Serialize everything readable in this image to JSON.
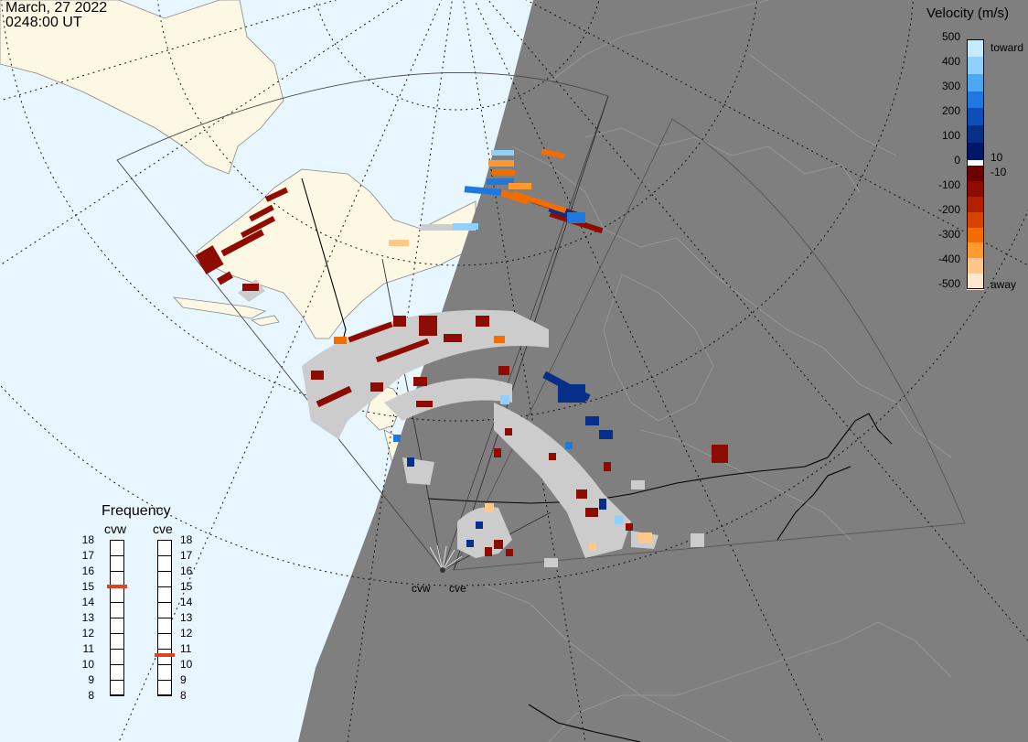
{
  "header": {
    "date": "March, 27 2022",
    "time": "0248:00 UT"
  },
  "velocity_scale": {
    "title": "Velocity (m/s)",
    "ticks": [
      "500",
      "400",
      "300",
      "200",
      "100",
      "10",
      "0",
      "-10",
      "-100",
      "-200",
      "-300",
      "-400",
      "-500"
    ],
    "toward_label": "toward",
    "away_label": "away",
    "colors_toward": [
      "#c6ebff",
      "#8fd0ff",
      "#4aa9f2",
      "#1e78e0",
      "#0d4fb8",
      "#062f8a",
      "#00166a"
    ],
    "colors_away": [
      "#6b0000",
      "#8e0b00",
      "#b32000",
      "#d84300",
      "#f26d00",
      "#ff9a30",
      "#ffc78a",
      "#ffe6cf"
    ]
  },
  "frequency_panel": {
    "title": "Frequency",
    "radars": [
      {
        "name": "cvw",
        "value_mhz": 15
      },
      {
        "name": "cve",
        "value_mhz": 10.6
      }
    ],
    "scale_ticks": [
      "18",
      "17",
      "16",
      "15",
      "14",
      "13",
      "12",
      "11",
      "10",
      "9",
      "8"
    ]
  },
  "sites": [
    {
      "code": "cvw"
    },
    {
      "code": "cve"
    }
  ],
  "colors": {
    "ocean": "#e8f6ff",
    "land": "#fdf8e4",
    "night": "#7f7f7f",
    "ground_scatter": "#cccccc",
    "boundary_night": "#a3a3a3"
  }
}
